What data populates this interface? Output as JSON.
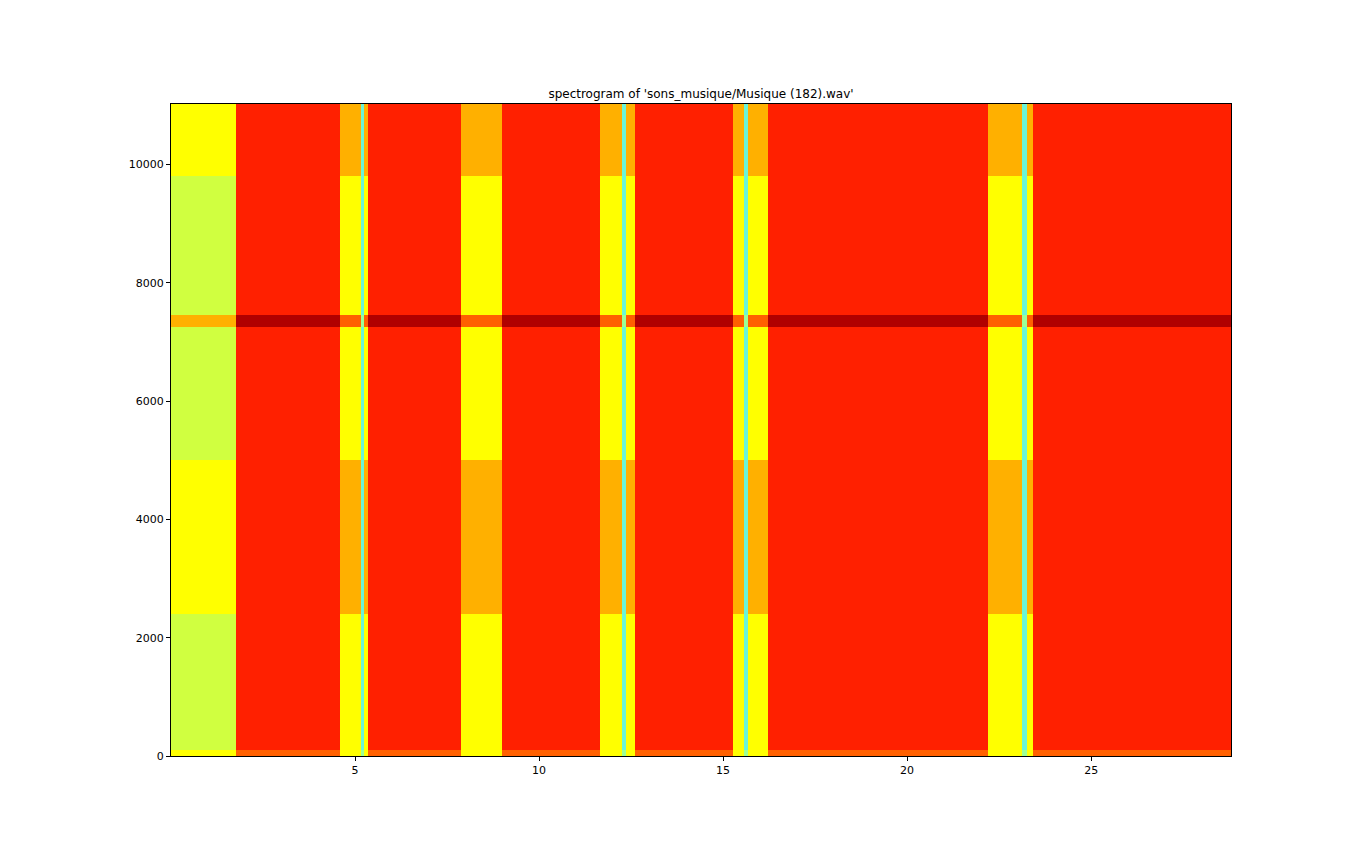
{
  "chart_data": {
    "type": "heatmap",
    "title": "spectrogram of 'sons_musique/Musique (182).wav'",
    "xlim": [
      0,
      28.8
    ],
    "ylim": [
      0,
      11025
    ],
    "xticks": [
      5,
      10,
      15,
      20,
      25
    ],
    "yticks": [
      0,
      2000,
      4000,
      6000,
      8000,
      10000
    ],
    "grid": false,
    "x_bins": [
      0,
      1.77,
      4.6,
      5.15,
      5.25,
      5.35,
      7.88,
      9.0,
      11.66,
      12.25,
      12.35,
      12.6,
      15.27,
      15.57,
      15.67,
      16.22,
      22.2,
      23.12,
      23.25,
      23.42,
      28.8
    ],
    "y_bins": [
      0,
      100,
      2400,
      5000,
      7250,
      7450,
      9800,
      11025
    ],
    "zlim": [
      0,
      10
    ],
    "cells": [
      [
        6,
        4,
        6,
        8,
        6,
        4,
        6,
        4,
        6,
        8,
        6,
        4,
        6,
        8,
        6,
        4,
        6,
        8,
        6,
        4
      ],
      [
        7,
        3,
        6,
        9,
        6,
        3,
        6,
        3,
        6,
        9,
        6,
        3,
        6,
        9,
        6,
        3,
        6,
        9,
        6,
        3
      ],
      [
        6,
        3,
        5,
        9,
        5,
        3,
        5,
        3,
        5,
        9,
        5,
        3,
        5,
        9,
        5,
        3,
        5,
        9,
        5,
        3
      ],
      [
        7,
        3,
        6,
        9,
        6,
        3,
        6,
        3,
        6,
        9,
        6,
        3,
        6,
        9,
        6,
        3,
        6,
        9,
        6,
        3
      ],
      [
        5,
        1.5,
        4,
        8,
        4,
        1.5,
        4,
        1.5,
        4,
        8,
        4,
        1.5,
        4,
        8,
        4,
        1.5,
        4,
        8,
        4,
        1.5
      ],
      [
        7,
        3,
        6,
        9,
        6,
        3,
        6,
        3,
        6,
        9,
        6,
        3,
        6,
        9,
        6,
        3,
        6,
        9,
        6,
        3
      ],
      [
        6,
        3,
        5,
        9,
        5,
        3,
        5,
        3,
        5,
        9,
        5,
        3,
        5,
        9,
        5,
        3,
        5,
        9,
        5,
        3
      ]
    ]
  }
}
